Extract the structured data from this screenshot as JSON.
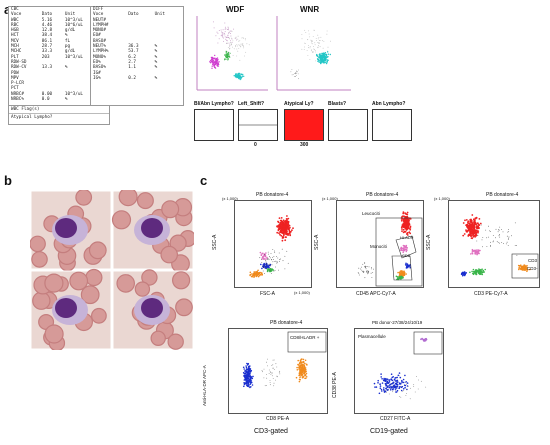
{
  "panels": {
    "a": "a",
    "b": "b",
    "c": "c"
  },
  "cbc": {
    "title": "CBC",
    "headers": [
      "Voce",
      "Dato",
      "Unit"
    ],
    "rows": [
      [
        "WBC",
        "5.16",
        "10^3/uL"
      ],
      [
        "RBC",
        "4.46",
        "10^6/uL"
      ],
      [
        "HGB",
        "12.8",
        "g/dL"
      ],
      [
        "HCT",
        "38.4",
        "%"
      ],
      [
        "MCV",
        "86.1",
        "fL"
      ],
      [
        "MCH",
        "28.7",
        "pg"
      ],
      [
        "MCHC",
        "33.3",
        "g/dL"
      ],
      [
        "PLT",
        "203",
        "10^3/uL"
      ],
      [
        "RDW-SD",
        "",
        ""
      ],
      [
        "RDW-CV",
        "13.3",
        "%"
      ],
      [
        "PDW",
        "",
        ""
      ],
      [
        "MPV",
        "",
        ""
      ],
      [
        "P-LCR",
        "",
        ""
      ],
      [
        "PCT",
        "",
        ""
      ],
      [
        "NRBC#",
        "0.00",
        "10^3/uL"
      ],
      [
        "NRBC%",
        "0.0",
        "%"
      ]
    ]
  },
  "diff": {
    "title": "DIFF",
    "headers": [
      "Voce",
      "Dato",
      "Unit"
    ],
    "rows": [
      [
        "NEUT#",
        "",
        ""
      ],
      [
        "LYMPH#",
        "",
        ""
      ],
      [
        "MONO#",
        "",
        ""
      ],
      [
        "EO#",
        "",
        ""
      ],
      [
        "BASO#",
        "",
        ""
      ],
      [
        "NEUT%",
        "36.3",
        "%"
      ],
      [
        "LYMPH%",
        "53.7",
        "%"
      ],
      [
        "MONO%",
        "6.2",
        "%"
      ],
      [
        "EO%",
        "2.7",
        "%"
      ],
      [
        "BASO%",
        "1.1",
        "%"
      ],
      [
        "IG#",
        "",
        ""
      ],
      [
        "IG%",
        "0.2",
        "%"
      ]
    ]
  },
  "flags": {
    "title": "WBC Flag(s)",
    "items": [
      "Atypical Lympho?"
    ]
  },
  "scatter_titles": {
    "wdf": "WDF",
    "wnr": "WNR"
  },
  "flag_boxes": [
    {
      "label": "Bl/Abn Lympho?",
      "value": ""
    },
    {
      "label": "Left_Shift?",
      "value": "0"
    },
    {
      "label": "Atypical Ly?",
      "value": "300"
    },
    {
      "label": "Blasts?",
      "value": ""
    },
    {
      "label": "Abn Lympho?",
      "value": ""
    }
  ],
  "colors": {
    "atypical_fill": "#ff1a1a",
    "cyan": "#22c6c6",
    "magenta": "#d040d0",
    "green": "#3ab54a",
    "red": "#ee2222",
    "blue": "#1a2fcf",
    "orange": "#f08a1c",
    "pink": "#e070c0",
    "violet": "#b06ad0"
  },
  "flow": {
    "p1": {
      "title": "PB donatore-4",
      "ylabel": "SSC-A",
      "xlabel": "FSC-A",
      "y_scale": "(x 1,000)",
      "x_scale": "(x 1,000)",
      "y_ticks": [
        "250",
        "200",
        "150",
        "100",
        "50",
        "0"
      ],
      "x_ticks": [
        "50",
        "100",
        "150",
        "200",
        "250"
      ]
    },
    "p2": {
      "title": "PB donatore-4",
      "ylabel": "SSC-A",
      "xlabel": "CD45 APC-Cy7-A",
      "y_scale": "(x 1,000)",
      "gates": [
        "Leucociti",
        "Monociti",
        "HLADR",
        "CD3"
      ]
    },
    "p3": {
      "title": "PB donatore-4",
      "ylabel": "SSC-A",
      "xlabel": "CD3 PE-Cy7-A",
      "y_scale": "(x 1,000)",
      "gates": [
        "CD3",
        "CD3-"
      ]
    },
    "p4": {
      "title": "PB donatore-4",
      "ylabel": "Anti-HLA-DR APC-A",
      "xlabel": "CD8 PE-A",
      "caption": "CD3-gated",
      "gates": [
        "CD8/HLADR +"
      ]
    },
    "p5": {
      "title": "PB donor-27/38/24/10/19",
      "ylabel": "CD38 PE-A",
      "xlabel": "CD27 FITC-A",
      "caption": "CD19-gated",
      "gates": [
        "Plasmacellule"
      ]
    }
  }
}
